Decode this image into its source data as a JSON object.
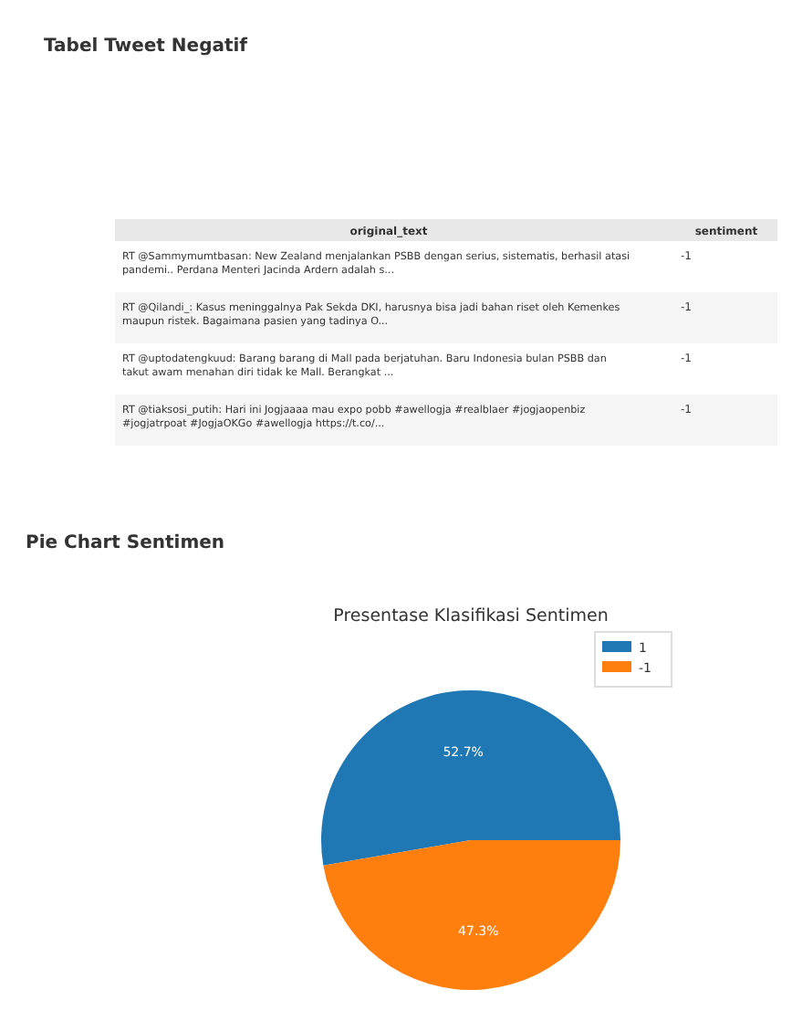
{
  "chart_data": [
    {
      "type": "other",
      "title": "Tabel Tweet Negatif",
      "categories": [
        "original_text",
        "sentiment"
      ],
      "cell_labels": [
        [
          "RT @Sammymumtbasan: New Zealand menjalankan PSBB dengan serius, sistematis, berhasil atasi pandemi.. Perdana Menteri Jacinda Ardern adalah s...",
          "-1"
        ],
        [
          "RT @Qilandi_: Kasus meninggalnya Pak Sekda DKI, harusnya bisa jadi bahan riset oleh Kemenkes maupun ristek. Bagaimana pasien yang tadinya O...",
          "-1"
        ],
        [
          "RT @uptodatengkuud: Barang barang di Mall pada berjatuhan. Baru Indonesia bulan PSBB dan takut awam menahan diri tidak ke Mall. Berangkat ...",
          "-1"
        ],
        [
          "RT @tiaksosi_putih: Hari ini Jogjaaaa mau expo pobb #awellogja #realblaer #jogjaopenbiz #jogjatrpoat #JogjaOKGo #awellogja https://t.co/...",
          "-1"
        ]
      ]
    },
    {
      "type": "pie",
      "title": "Presentase Klasifikasi Sentimen",
      "annotations": [
        "Pie Chart Sentimen"
      ],
      "categories": [
        "1",
        "-1"
      ],
      "values": [
        52.7,
        47.3
      ],
      "colors": [
        "#1f77b4",
        "#ff7f0e"
      ],
      "value_labels": [
        "52.7%",
        "47.3%"
      ],
      "legend": "top right"
    }
  ]
}
